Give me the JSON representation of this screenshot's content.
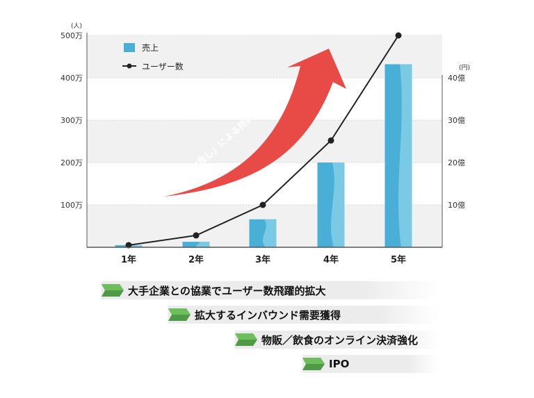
{
  "chart_data": {
    "type": "bar",
    "categories": [
      "1年",
      "2年",
      "3年",
      "4年",
      "5年"
    ],
    "left_axis": {
      "unit": "(人)",
      "ticks": [
        0,
        100,
        200,
        300,
        400,
        500
      ],
      "tick_labels": [
        "",
        "100万",
        "200万",
        "300万",
        "400万",
        "500万"
      ],
      "range": [
        0,
        500
      ]
    },
    "right_axis": {
      "unit": "(円)",
      "ticks": [
        0,
        10,
        20,
        30,
        40
      ],
      "tick_labels": [
        "",
        "10億",
        "20億",
        "30億",
        "40億"
      ],
      "range": [
        0,
        50
      ]
    },
    "series": [
      {
        "name": "売上",
        "type": "bar",
        "axis": "right",
        "values": [
          0.5,
          1.3,
          6.6,
          20.0,
          43.2
        ]
      },
      {
        "name": "ユーザー数",
        "type": "line",
        "axis": "left",
        "values": [
          5,
          28,
          100,
          252,
          500
        ]
      }
    ],
    "annotation": "「三方良し」による持続的成長",
    "grid": true,
    "legend_position": "top-left"
  },
  "colors": {
    "bar": "#4aafd6",
    "bar_light": "#8cd3ea",
    "line": "#222222",
    "arrow": "#e84a45",
    "band_gray": "#ececec",
    "chevron": "#4f9a46"
  },
  "milestones": [
    "大手企業との協業でユーザー数飛躍的拡大",
    "拡大するインバウンド需要獲得",
    "物販／飲食のオンライン決済強化",
    "IPO"
  ]
}
